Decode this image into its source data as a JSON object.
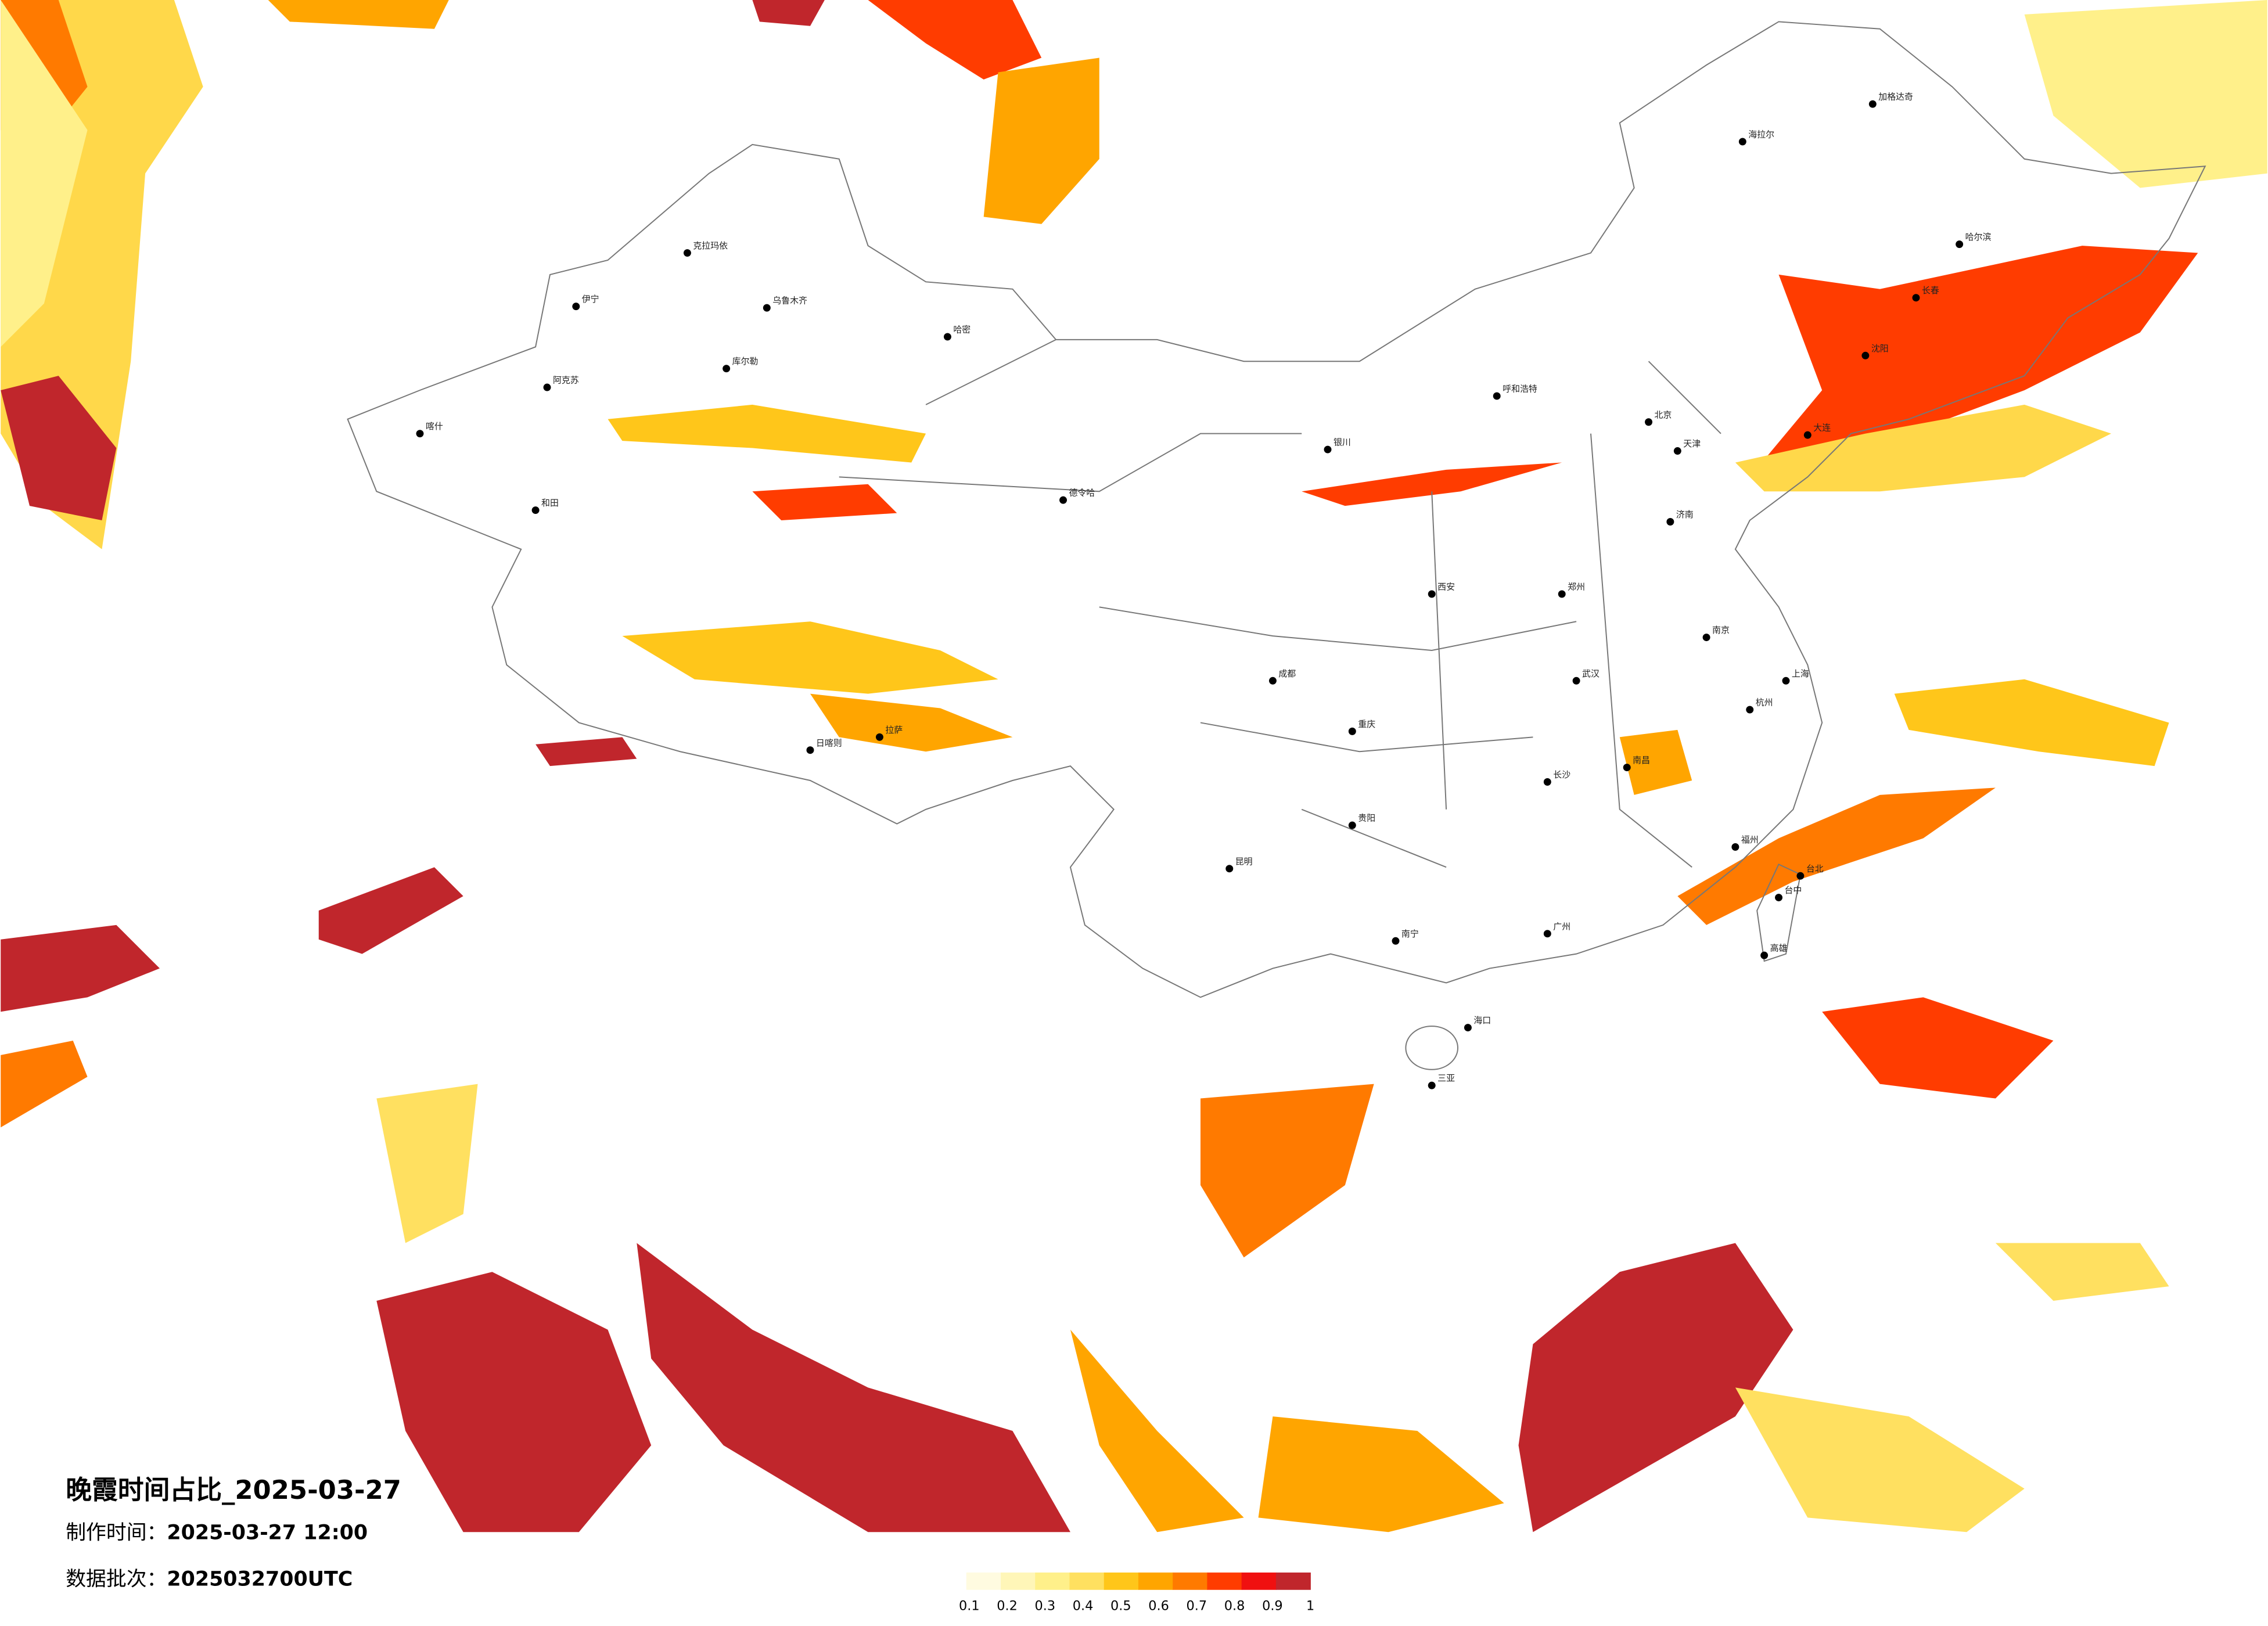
{
  "title": "晚霞时间占比_2025-03-27",
  "made_label": "制作时间：",
  "made_time": "2025-03-27 12:00",
  "batch_label": "数据批次：",
  "batch": "2025032700UTC",
  "legend": {
    "colors": [
      "#fffbe0",
      "#fff6b8",
      "#fff08a",
      "#ffe060",
      "#ffc61a",
      "#ffa500",
      "#ff7a00",
      "#ff3c00",
      "#f01010",
      "#c0262c"
    ],
    "ticks": [
      0.1,
      0.2,
      0.3,
      0.4,
      0.5,
      0.6,
      0.7,
      0.8,
      0.9,
      1
    ]
  },
  "cities": [
    "克拉玛依",
    "伊宁",
    "乌鲁木齐",
    "哈密",
    "库尔勒",
    "阿克苏",
    "喀什",
    "和田",
    "日喀则",
    "拉萨",
    "德令哈",
    "银川",
    "呼和浩特",
    "北京",
    "天津",
    "哈尔滨",
    "长春",
    "沈阳",
    "大连",
    "济南",
    "郑州",
    "西安",
    "成都",
    "重庆",
    "武汉",
    "南京",
    "上海",
    "杭州",
    "长沙",
    "南昌",
    "福州",
    "贵阳",
    "昆明",
    "南宁",
    "广州",
    "海口",
    "三亚",
    "台北",
    "台中",
    "高雄",
    "海拉尔",
    "加格达奇"
  ]
}
